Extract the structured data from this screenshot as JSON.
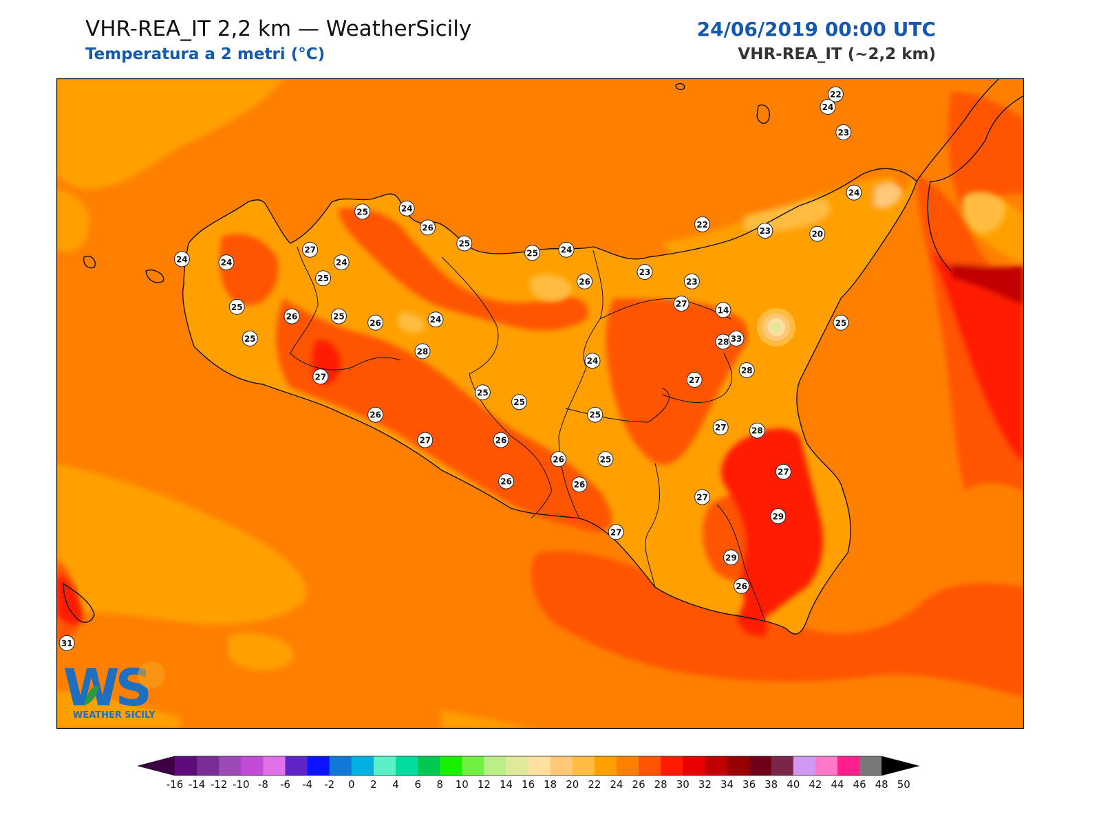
{
  "header": {
    "title": "VHR-REA_IT 2,2 km — WeatherSicily",
    "subtitle": "Temperatura a 2 metri (°C)",
    "datetime": "24/06/2019 00:00 UTC",
    "model": "VHR-REA_IT (~2,2 km)"
  },
  "logo": {
    "letters": "WS",
    "text": "WEATHER SICILY"
  },
  "colors": {
    "sea_warm": "#ff8000",
    "land_24": "#ffa000",
    "land_26": "#ff5500",
    "land_30": "#ff1a00",
    "accent_text": "#1558b0"
  },
  "stations": [
    {
      "lon": 13.17,
      "lat": 38.18,
      "t": 25
    },
    {
      "lon": 13.34,
      "lat": 38.19,
      "t": 24
    },
    {
      "lon": 13.42,
      "lat": 38.13,
      "t": 26
    },
    {
      "lon": 13.56,
      "lat": 38.08,
      "t": 25
    },
    {
      "lon": 13.82,
      "lat": 38.05,
      "t": 25
    },
    {
      "lon": 13.95,
      "lat": 38.06,
      "t": 24
    },
    {
      "lon": 12.97,
      "lat": 38.06,
      "t": 27
    },
    {
      "lon": 13.02,
      "lat": 37.97,
      "t": 25
    },
    {
      "lon": 12.65,
      "lat": 38.02,
      "t": 24
    },
    {
      "lon": 12.48,
      "lat": 38.03,
      "t": 24
    },
    {
      "lon": 13.09,
      "lat": 38.02,
      "t": 24
    },
    {
      "lon": 12.69,
      "lat": 37.88,
      "t": 25
    },
    {
      "lon": 12.9,
      "lat": 37.85,
      "t": 26
    },
    {
      "lon": 13.08,
      "lat": 37.85,
      "t": 25
    },
    {
      "lon": 13.22,
      "lat": 37.83,
      "t": 26
    },
    {
      "lon": 13.45,
      "lat": 37.84,
      "t": 24
    },
    {
      "lon": 12.74,
      "lat": 37.78,
      "t": 25
    },
    {
      "lon": 13.01,
      "lat": 37.66,
      "t": 27
    },
    {
      "lon": 13.4,
      "lat": 37.74,
      "t": 28
    },
    {
      "lon": 13.63,
      "lat": 37.61,
      "t": 25
    },
    {
      "lon": 13.77,
      "lat": 37.58,
      "t": 25
    },
    {
      "lon": 13.22,
      "lat": 37.54,
      "t": 26
    },
    {
      "lon": 13.41,
      "lat": 37.46,
      "t": 27
    },
    {
      "lon": 13.7,
      "lat": 37.46,
      "t": 26
    },
    {
      "lon": 13.92,
      "lat": 37.4,
      "t": 26
    },
    {
      "lon": 14.02,
      "lat": 37.96,
      "t": 26
    },
    {
      "lon": 14.05,
      "lat": 37.71,
      "t": 24
    },
    {
      "lon": 14.25,
      "lat": 37.99,
      "t": 23
    },
    {
      "lon": 14.43,
      "lat": 37.96,
      "t": 23
    },
    {
      "lon": 14.39,
      "lat": 37.89,
      "t": 27
    },
    {
      "lon": 14.44,
      "lat": 37.65,
      "t": 27
    },
    {
      "lon": 14.06,
      "lat": 37.54,
      "t": 25
    },
    {
      "lon": 14.1,
      "lat": 37.4,
      "t": 25
    },
    {
      "lon": 13.72,
      "lat": 37.33,
      "t": 26
    },
    {
      "lon": 14.0,
      "lat": 37.32,
      "t": 26
    },
    {
      "lon": 14.14,
      "lat": 37.17,
      "t": 27
    },
    {
      "lon": 14.47,
      "lat": 37.28,
      "t": 27
    },
    {
      "lon": 14.54,
      "lat": 37.5,
      "t": 27
    },
    {
      "lon": 14.55,
      "lat": 37.77,
      "t": 28
    },
    {
      "lon": 14.6,
      "lat": 37.78,
      "t": 33
    },
    {
      "lon": 14.55,
      "lat": 37.87,
      "t": 14
    },
    {
      "lon": 14.47,
      "lat": 38.14,
      "t": 22
    },
    {
      "lon": 14.71,
      "lat": 38.12,
      "t": 23
    },
    {
      "lon": 14.91,
      "lat": 38.11,
      "t": 20
    },
    {
      "lon": 15.05,
      "lat": 38.24,
      "t": 24
    },
    {
      "lon": 15.0,
      "lat": 37.83,
      "t": 25
    },
    {
      "lon": 14.64,
      "lat": 37.68,
      "t": 28
    },
    {
      "lon": 14.68,
      "lat": 37.49,
      "t": 28
    },
    {
      "lon": 14.78,
      "lat": 37.36,
      "t": 27
    },
    {
      "lon": 14.76,
      "lat": 37.22,
      "t": 29
    },
    {
      "lon": 14.58,
      "lat": 37.09,
      "t": 29
    },
    {
      "lon": 14.62,
      "lat": 37.0,
      "t": 26
    },
    {
      "lon": 14.95,
      "lat": 38.51,
      "t": 24
    },
    {
      "lon": 14.98,
      "lat": 38.55,
      "t": 22
    },
    {
      "lon": 15.01,
      "lat": 38.43,
      "t": 23
    },
    {
      "lon": 12.04,
      "lat": 36.82,
      "t": 31
    }
  ],
  "colorbar": {
    "ticks": [
      "-16",
      "-14",
      "-12",
      "-10",
      "-8",
      "-6",
      "-4",
      "-2",
      "0",
      "2",
      "4",
      "6",
      "8",
      "10",
      "12",
      "14",
      "16",
      "18",
      "20",
      "22",
      "24",
      "26",
      "28",
      "30",
      "32",
      "34",
      "36",
      "38",
      "40",
      "42",
      "44",
      "46",
      "48",
      "50"
    ],
    "colors": [
      "#3d0045",
      "#5e0c7c",
      "#7a2d96",
      "#9b4ab8",
      "#c34cd6",
      "#e070e8",
      "#5f24c8",
      "#0c14ff",
      "#1278d8",
      "#00b0e0",
      "#5cf0c8",
      "#00dca0",
      "#00c850",
      "#18f000",
      "#70f040",
      "#bcee88",
      "#e2e89a",
      "#ffe0a0",
      "#ffc878",
      "#ffbc40",
      "#ffa000",
      "#ff8000",
      "#ff5500",
      "#ff1a00",
      "#e80000",
      "#c00000",
      "#990000",
      "#700018",
      "#7a2648",
      "#d098f0",
      "#ff78c8",
      "#ff1e8c",
      "#787878",
      "#3a3a3a"
    ]
  }
}
